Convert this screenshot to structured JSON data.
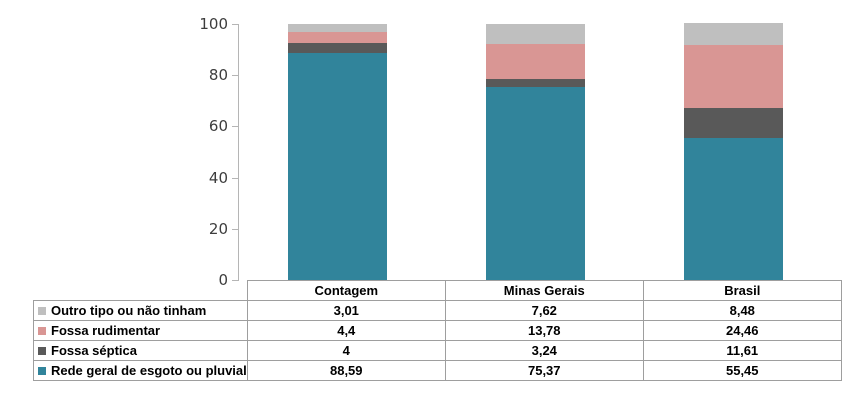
{
  "chart_data": {
    "type": "bar",
    "stacked": true,
    "title": "",
    "xlabel": "",
    "ylabel": "",
    "ylim": [
      0,
      100
    ],
    "yticks": [
      0,
      20,
      40,
      60,
      80,
      100
    ],
    "grid": false,
    "legend_position": "table-below",
    "categories": [
      "Contagem",
      "Minas Gerais",
      "Brasil"
    ],
    "series": [
      {
        "name": "Outro tipo ou não tinham",
        "color": "#BFBFBF",
        "values": [
          3.01,
          7.62,
          8.48
        ],
        "labels": [
          "3,01",
          "7,62",
          "8,48"
        ]
      },
      {
        "name": "Fossa rudimentar",
        "color": "#D99694",
        "values": [
          4.4,
          13.78,
          24.46
        ],
        "labels": [
          "4,4",
          "13,78",
          "24,46"
        ]
      },
      {
        "name": "Fossa séptica",
        "color": "#595959",
        "values": [
          4,
          3.24,
          11.61
        ],
        "labels": [
          "4",
          "3,24",
          "11,61"
        ]
      },
      {
        "name": "Rede geral de esgoto ou pluvial",
        "color": "#31849B",
        "values": [
          88.59,
          75.37,
          55.45
        ],
        "labels": [
          "88,59",
          "75,37",
          "55,45"
        ]
      }
    ],
    "colors": {
      "axis_line": "#B5B5B5",
      "table_border": "#9E9E9E",
      "text": "#000000"
    }
  }
}
